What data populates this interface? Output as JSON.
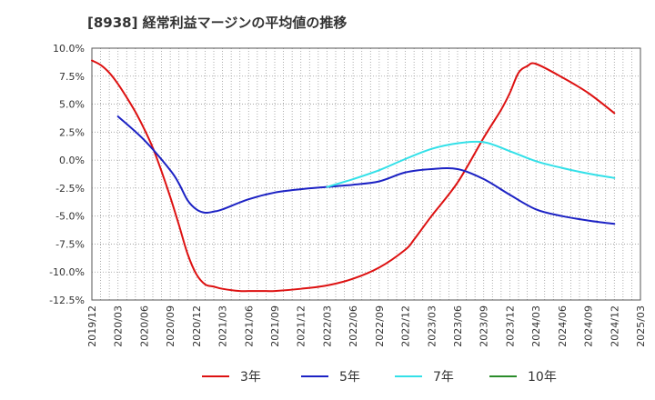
{
  "title": "[8938]  経常利益マージンの平均値の推移",
  "chart_data": {
    "type": "line",
    "title": "[8938]  経常利益マージンの平均値の推移",
    "xlabel": "",
    "ylabel": "",
    "x_ticks": [
      "2019/12",
      "2020/03",
      "2020/06",
      "2020/09",
      "2020/12",
      "2021/03",
      "2021/06",
      "2021/09",
      "2021/12",
      "2022/03",
      "2022/06",
      "2022/09",
      "2022/12",
      "2023/03",
      "2023/06",
      "2023/09",
      "2023/12",
      "2024/03",
      "2024/06",
      "2024/09",
      "2024/12",
      "2025/03"
    ],
    "y_ticks": [
      "10.0%",
      "7.5%",
      "5.0%",
      "2.5%",
      "0.0%",
      "-2.5%",
      "-5.0%",
      "-7.5%",
      "-10.0%",
      "-12.5%"
    ],
    "ylim": [
      -12.5,
      10.0
    ],
    "y_unit": "%",
    "grid": true,
    "legend_position": "bottom",
    "series": [
      {
        "name": "3年",
        "color": "#dd1111",
        "x": [
          "2019/12",
          "2020/01",
          "2020/02",
          "2020/03",
          "2020/04",
          "2020/05",
          "2020/06",
          "2020/07",
          "2020/08",
          "2020/09",
          "2020/10",
          "2020/11",
          "2020/12",
          "2021/01",
          "2021/02",
          "2021/03",
          "2021/05",
          "2021/06",
          "2021/08",
          "2021/09",
          "2021/12",
          "2022/03",
          "2022/06",
          "2022/09",
          "2022/12",
          "2023/01",
          "2023/03",
          "2023/06",
          "2023/09",
          "2023/11",
          "2023/12",
          "2024/01",
          "2024/02",
          "2024/03",
          "2024/06",
          "2024/09",
          "2024/12"
        ],
        "values": [
          8.9,
          8.5,
          7.8,
          6.8,
          5.6,
          4.3,
          2.8,
          1.1,
          -1.0,
          -3.3,
          -5.8,
          -8.4,
          -10.2,
          -11.1,
          -11.3,
          -11.5,
          -11.7,
          -11.7,
          -11.7,
          -11.7,
          -11.5,
          -11.2,
          -10.6,
          -9.6,
          -8.0,
          -7.1,
          -5.0,
          -2.0,
          2.0,
          4.5,
          6.0,
          7.8,
          8.4,
          8.6,
          7.4,
          6.0,
          4.2
        ]
      },
      {
        "name": "5年",
        "color": "#1c22c4",
        "x": [
          "2020/03",
          "2020/06",
          "2020/09",
          "2020/10",
          "2020/11",
          "2020/12",
          "2021/01",
          "2021/02",
          "2021/03",
          "2021/06",
          "2021/09",
          "2021/12",
          "2022/03",
          "2022/06",
          "2022/09",
          "2022/12",
          "2023/03",
          "2023/06",
          "2023/09",
          "2023/12",
          "2024/03",
          "2024/06",
          "2024/09",
          "2024/12"
        ],
        "values": [
          3.9,
          1.8,
          -0.9,
          -2.1,
          -3.6,
          -4.4,
          -4.7,
          -4.6,
          -4.4,
          -3.5,
          -2.9,
          -2.6,
          -2.4,
          -2.2,
          -1.9,
          -1.1,
          -0.8,
          -0.8,
          -1.7,
          -3.1,
          -4.4,
          -5.0,
          -5.4,
          -5.7
        ]
      },
      {
        "name": "7年",
        "color": "#33e0e8",
        "x": [
          "2022/03",
          "2022/06",
          "2022/09",
          "2022/12",
          "2023/03",
          "2023/06",
          "2023/09",
          "2023/12",
          "2024/03",
          "2024/06",
          "2024/09",
          "2024/12"
        ],
        "values": [
          -2.4,
          -1.7,
          -0.9,
          0.1,
          1.0,
          1.5,
          1.6,
          0.8,
          -0.1,
          -0.7,
          -1.2,
          -1.6
        ]
      },
      {
        "name": "10年",
        "color": "#2a8c2a",
        "x": [],
        "values": []
      }
    ]
  }
}
